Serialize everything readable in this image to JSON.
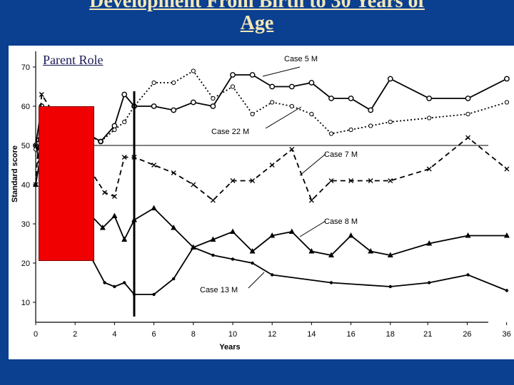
{
  "slide": {
    "title_line1": "Development From Birth to 30 Years of",
    "title_line2": "Age",
    "highlight_label": "Parent Role",
    "colors": {
      "band": "#0b3f8f",
      "title_text": "#f2e7b8",
      "highlight_box": "#f00000"
    }
  },
  "chart_data": {
    "type": "line",
    "title": "",
    "xlabel": "Years",
    "ylabel": "Standard score",
    "ylim": [
      7,
      74
    ],
    "y_ticks": [
      10,
      20,
      30,
      40,
      50,
      60,
      70
    ],
    "x_ticks": [
      "0",
      "2",
      "4",
      "6",
      "8",
      "10",
      "12",
      "14",
      "16",
      "18",
      "21",
      "26",
      "36"
    ],
    "reference_line_y": 50,
    "vertical_marker_x": 5,
    "highlight_x_range": [
      0,
      3
    ],
    "highlight_y_range": [
      20.9,
      60.3
    ],
    "grid": false,
    "series": [
      {
        "name": "Case 5 M",
        "marker": "circle",
        "line": "solid",
        "x": [
          0,
          0.3,
          3.3,
          4,
          4.5,
          5,
          6,
          7,
          8,
          9,
          10,
          11,
          12,
          13,
          14,
          15,
          16,
          17,
          18,
          19,
          20,
          21
        ],
        "y": [
          50,
          60,
          51,
          55,
          63,
          60,
          60,
          59,
          61,
          60,
          68,
          68,
          65,
          65,
          66,
          62,
          62,
          59,
          67,
          62,
          62,
          67
        ]
      },
      {
        "name": "Case 22 M",
        "marker": "open-circle",
        "line": "dotted",
        "x": [
          0,
          0.4,
          3.3,
          4,
          4.5,
          5,
          6,
          7,
          8,
          9,
          10,
          11,
          12,
          13,
          14,
          15,
          16,
          17,
          18,
          19,
          20,
          21
        ],
        "y": [
          49,
          58,
          51,
          54,
          56,
          60,
          66,
          66,
          69,
          62,
          65,
          58,
          61,
          60,
          58,
          53,
          54,
          55,
          56,
          57,
          58,
          61
        ]
      },
      {
        "name": "Case 7 M",
        "marker": "x",
        "line": "dashed",
        "x": [
          0,
          0.3,
          3.5,
          4,
          4.5,
          5,
          6,
          7,
          8,
          9,
          10,
          11,
          12,
          13,
          14,
          15,
          16,
          17,
          18,
          19,
          20,
          21
        ],
        "y": [
          40,
          63,
          38,
          37,
          47,
          47,
          45,
          43,
          40,
          36,
          41,
          41,
          45,
          49,
          36,
          41,
          41,
          41,
          41,
          44,
          52,
          44
        ]
      },
      {
        "name": "Case 8 M",
        "marker": "triangle",
        "line": "solid",
        "x": [
          0,
          0.2,
          3.4,
          4,
          4.5,
          5,
          6,
          7,
          8,
          9,
          10,
          11,
          12,
          13,
          14,
          15,
          16,
          17,
          18,
          19,
          20,
          21
        ],
        "y": [
          40,
          46,
          29,
          32,
          26,
          31,
          34,
          29,
          24,
          26,
          28,
          23,
          27,
          28,
          23,
          22,
          27,
          23,
          22,
          25,
          27,
          27
        ]
      },
      {
        "name": "Case 13 M",
        "marker": "dot",
        "line": "solid",
        "x": [
          0,
          0.2,
          3.5,
          4,
          4.5,
          5,
          6,
          7,
          8,
          9,
          10,
          11,
          12,
          15,
          18,
          19,
          20,
          21
        ],
        "y": [
          50,
          46,
          15,
          14,
          15,
          12,
          12,
          16,
          24,
          22,
          21,
          20,
          17,
          15,
          14,
          15,
          17,
          13
        ]
      }
    ]
  }
}
